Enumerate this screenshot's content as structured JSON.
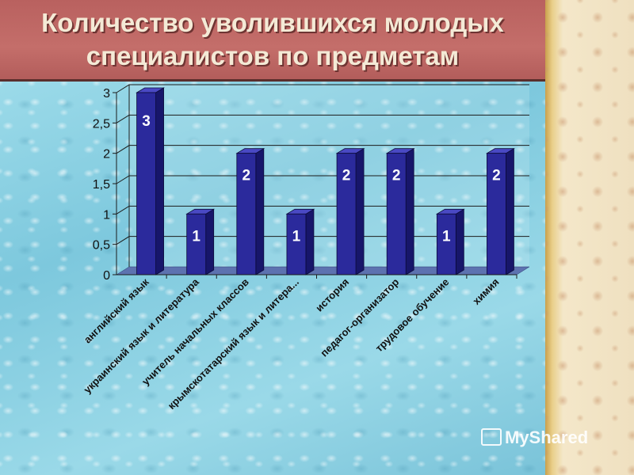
{
  "slide": {
    "title_line1": "Количество уволившихся молодых",
    "title_line2": "специалистов по предметам",
    "watermark": "MyShared"
  },
  "colors": {
    "bar_front": "#2b2a9c",
    "bar_side": "#17166a",
    "bar_top": "#4a49c4",
    "axis": "#1c1c1c",
    "value_label": "#ffffff"
  },
  "chart_data": {
    "type": "bar",
    "title": "",
    "xlabel": "",
    "ylabel": "",
    "ylim": [
      0,
      3
    ],
    "yticks": [
      "0",
      "0,5",
      "1",
      "1,5",
      "2",
      "2,5",
      "3"
    ],
    "grid": true,
    "legend": "none",
    "categories": [
      "английский язык",
      "украинский язык и литература",
      "учитель начальных классов",
      "крымскотатарский язык и литера...",
      "история",
      "педагог-организатор",
      "трудовое обучение",
      "химия"
    ],
    "values": [
      3,
      1,
      2,
      1,
      2,
      2,
      1,
      2
    ],
    "value_labels": [
      "3",
      "1",
      "2",
      "1",
      "2",
      "2",
      "1",
      "2"
    ]
  }
}
